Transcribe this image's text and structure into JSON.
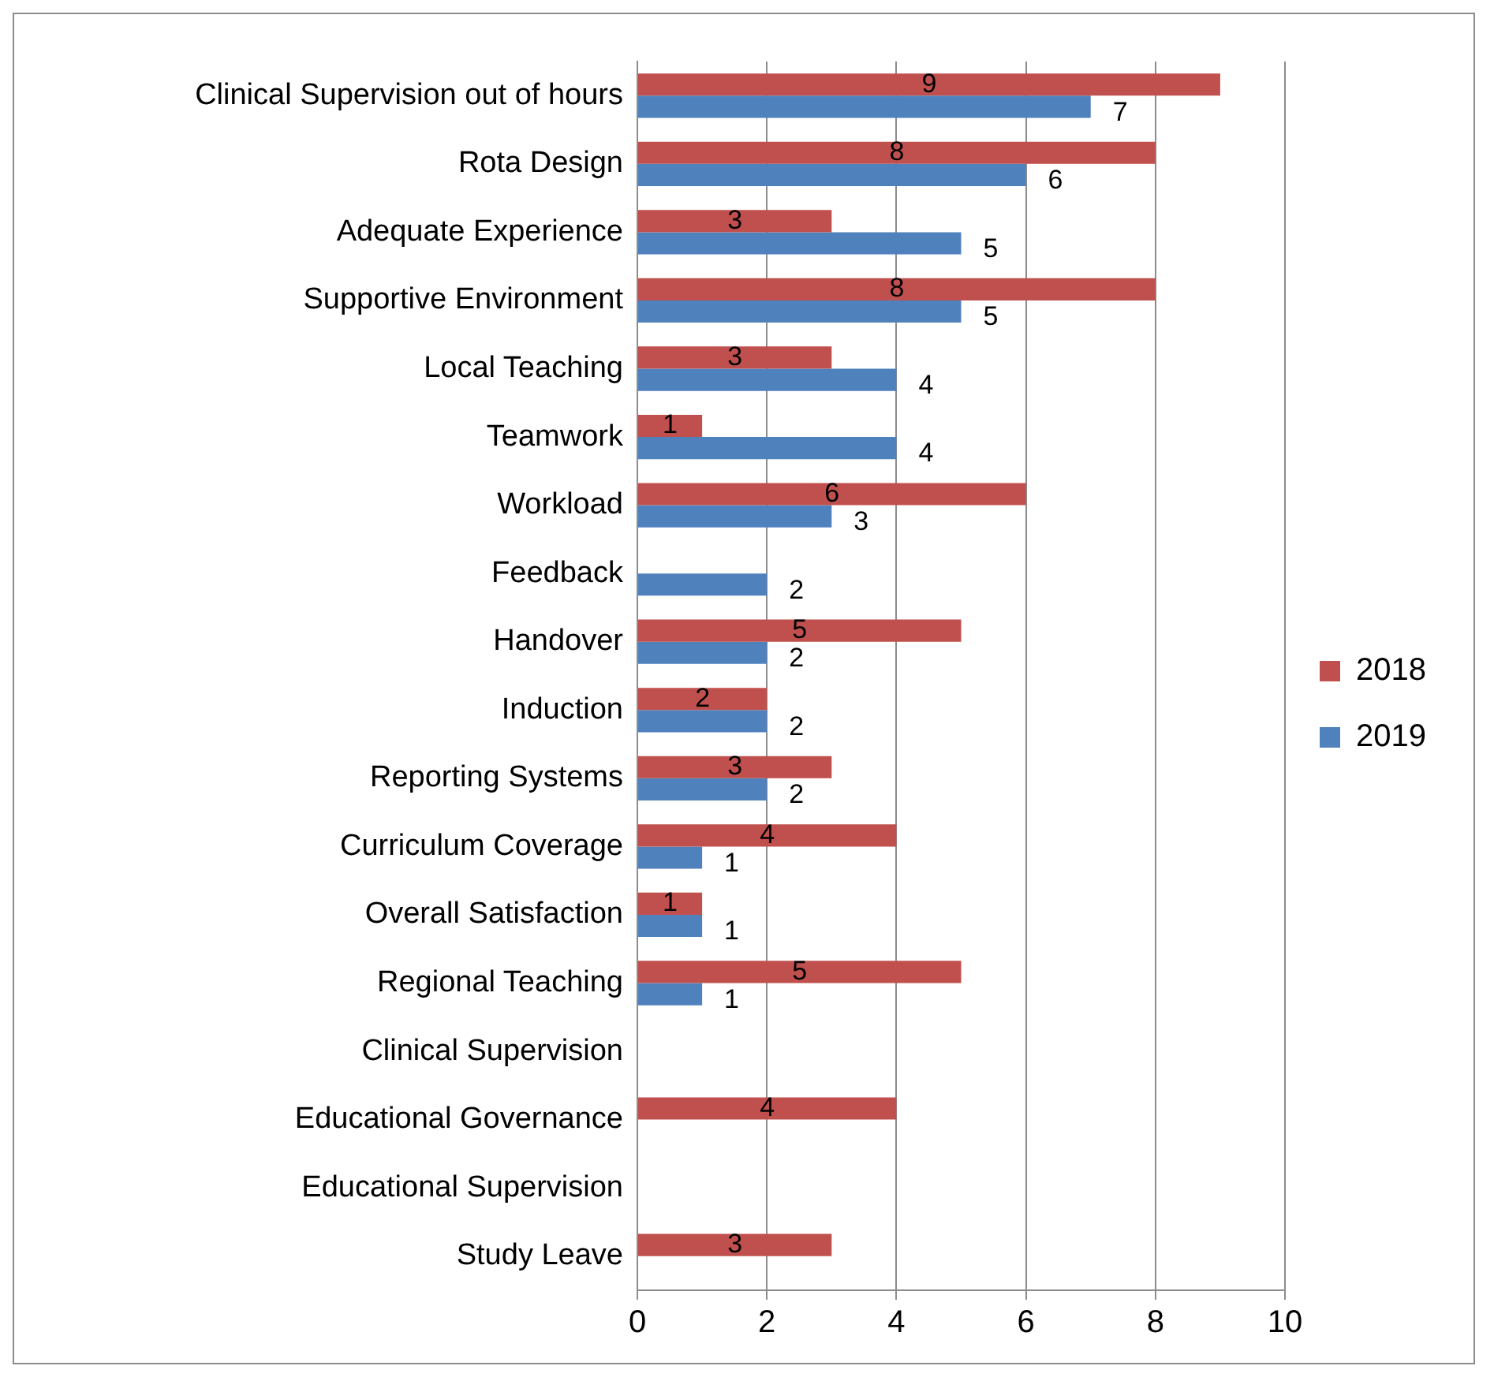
{
  "chart_data": {
    "type": "bar",
    "orientation": "horizontal",
    "categories": [
      "Clinical Supervision out of hours",
      "Rota Design",
      "Adequate Experience",
      "Supportive Environment",
      "Local Teaching",
      "Teamwork",
      "Workload",
      "Feedback",
      "Handover",
      "Induction",
      "Reporting Systems",
      "Curriculum Coverage",
      "Overall Satisfaction",
      "Regional Teaching",
      "Clinical Supervision",
      "Educational Governance",
      "Educational Supervision",
      "Study Leave"
    ],
    "series": [
      {
        "name": "2018",
        "color": "#c0504d",
        "values": [
          9,
          8,
          3,
          8,
          3,
          1,
          6,
          null,
          5,
          2,
          3,
          4,
          1,
          5,
          null,
          4,
          null,
          3
        ]
      },
      {
        "name": "2019",
        "color": "#4f81bd",
        "values": [
          7,
          6,
          5,
          5,
          4,
          4,
          3,
          2,
          2,
          2,
          2,
          1,
          1,
          1,
          null,
          null,
          null,
          null
        ]
      }
    ],
    "xlim": [
      0,
      10
    ],
    "xticks": [
      0,
      2,
      4,
      6,
      8,
      10
    ],
    "grid": "x",
    "legend": "right",
    "data_labels": true
  }
}
